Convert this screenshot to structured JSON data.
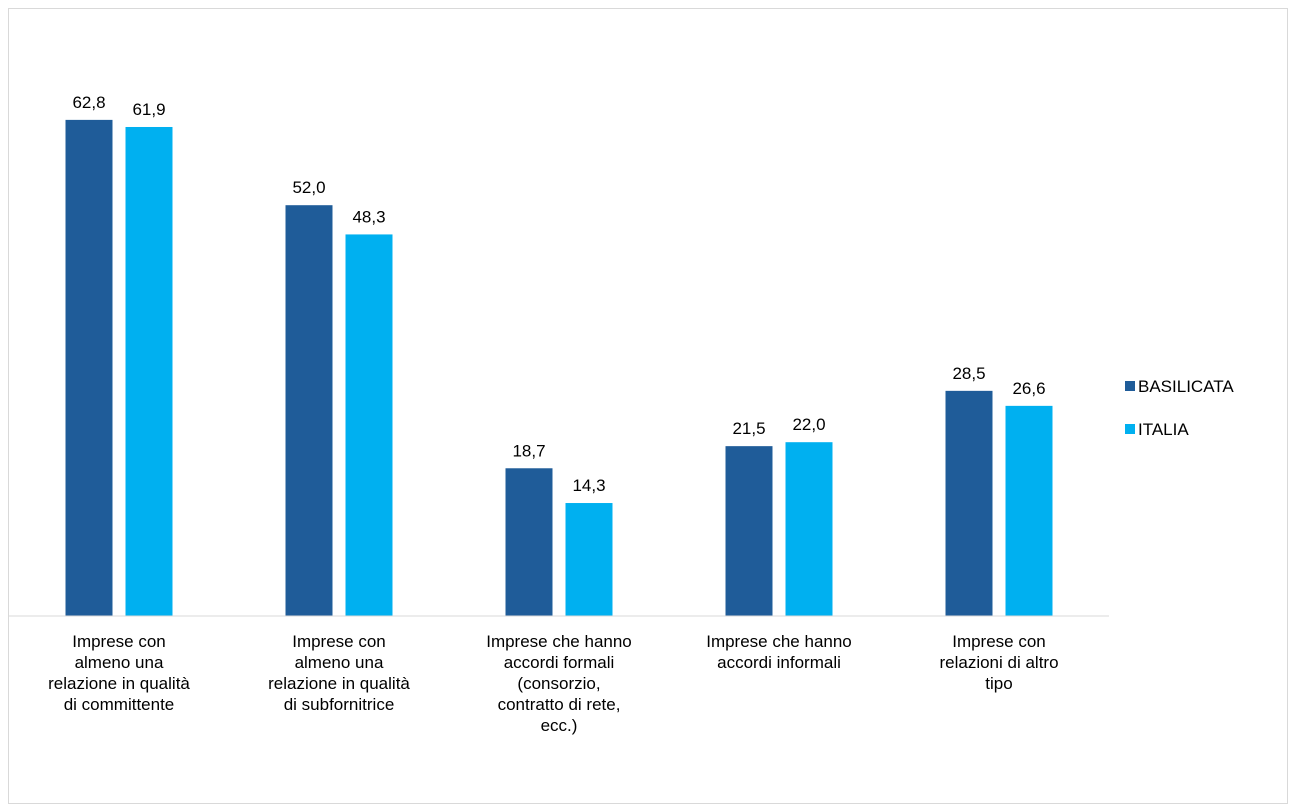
{
  "chart_data": {
    "type": "bar",
    "title": "",
    "xlabel": "",
    "ylabel": "",
    "ylim": [
      0,
      68
    ],
    "grid": false,
    "legend_position": "right",
    "categories": [
      "Imprese con almeno una relazione in qualità di committente",
      "Imprese  con almeno una relazione in qualità di subfornitrice",
      "Imprese che hanno accordi formali (consorzio, contratto di rete, ecc.)",
      "Imprese che hanno accordi informali",
      "Imprese con relazioni di altro tipo"
    ],
    "category_lines": [
      [
        "Imprese con",
        "almeno una",
        "relazione in qualità",
        "di committente"
      ],
      [
        "Imprese  con",
        "almeno una",
        "relazione in qualità",
        "di subfornitrice"
      ],
      [
        "Imprese che hanno",
        "accordi formali",
        "(consorzio,",
        "contratto di rete,",
        "ecc.)"
      ],
      [
        "Imprese che hanno",
        "accordi informali"
      ],
      [
        "Imprese con",
        "relazioni di altro",
        "tipo"
      ]
    ],
    "series": [
      {
        "name": "BASILICATA",
        "color": "#1f5c99",
        "values": [
          62.8,
          52.0,
          18.7,
          21.5,
          28.5
        ],
        "labels": [
          "62,8",
          "52,0",
          "18,7",
          "21,5",
          "28,5"
        ]
      },
      {
        "name": "ITALIA",
        "color": "#00b0f0",
        "values": [
          61.9,
          48.3,
          14.3,
          22.0,
          26.6
        ],
        "labels": [
          "61,9",
          "48,3",
          "14,3",
          "22,0",
          "26,6"
        ]
      }
    ]
  }
}
